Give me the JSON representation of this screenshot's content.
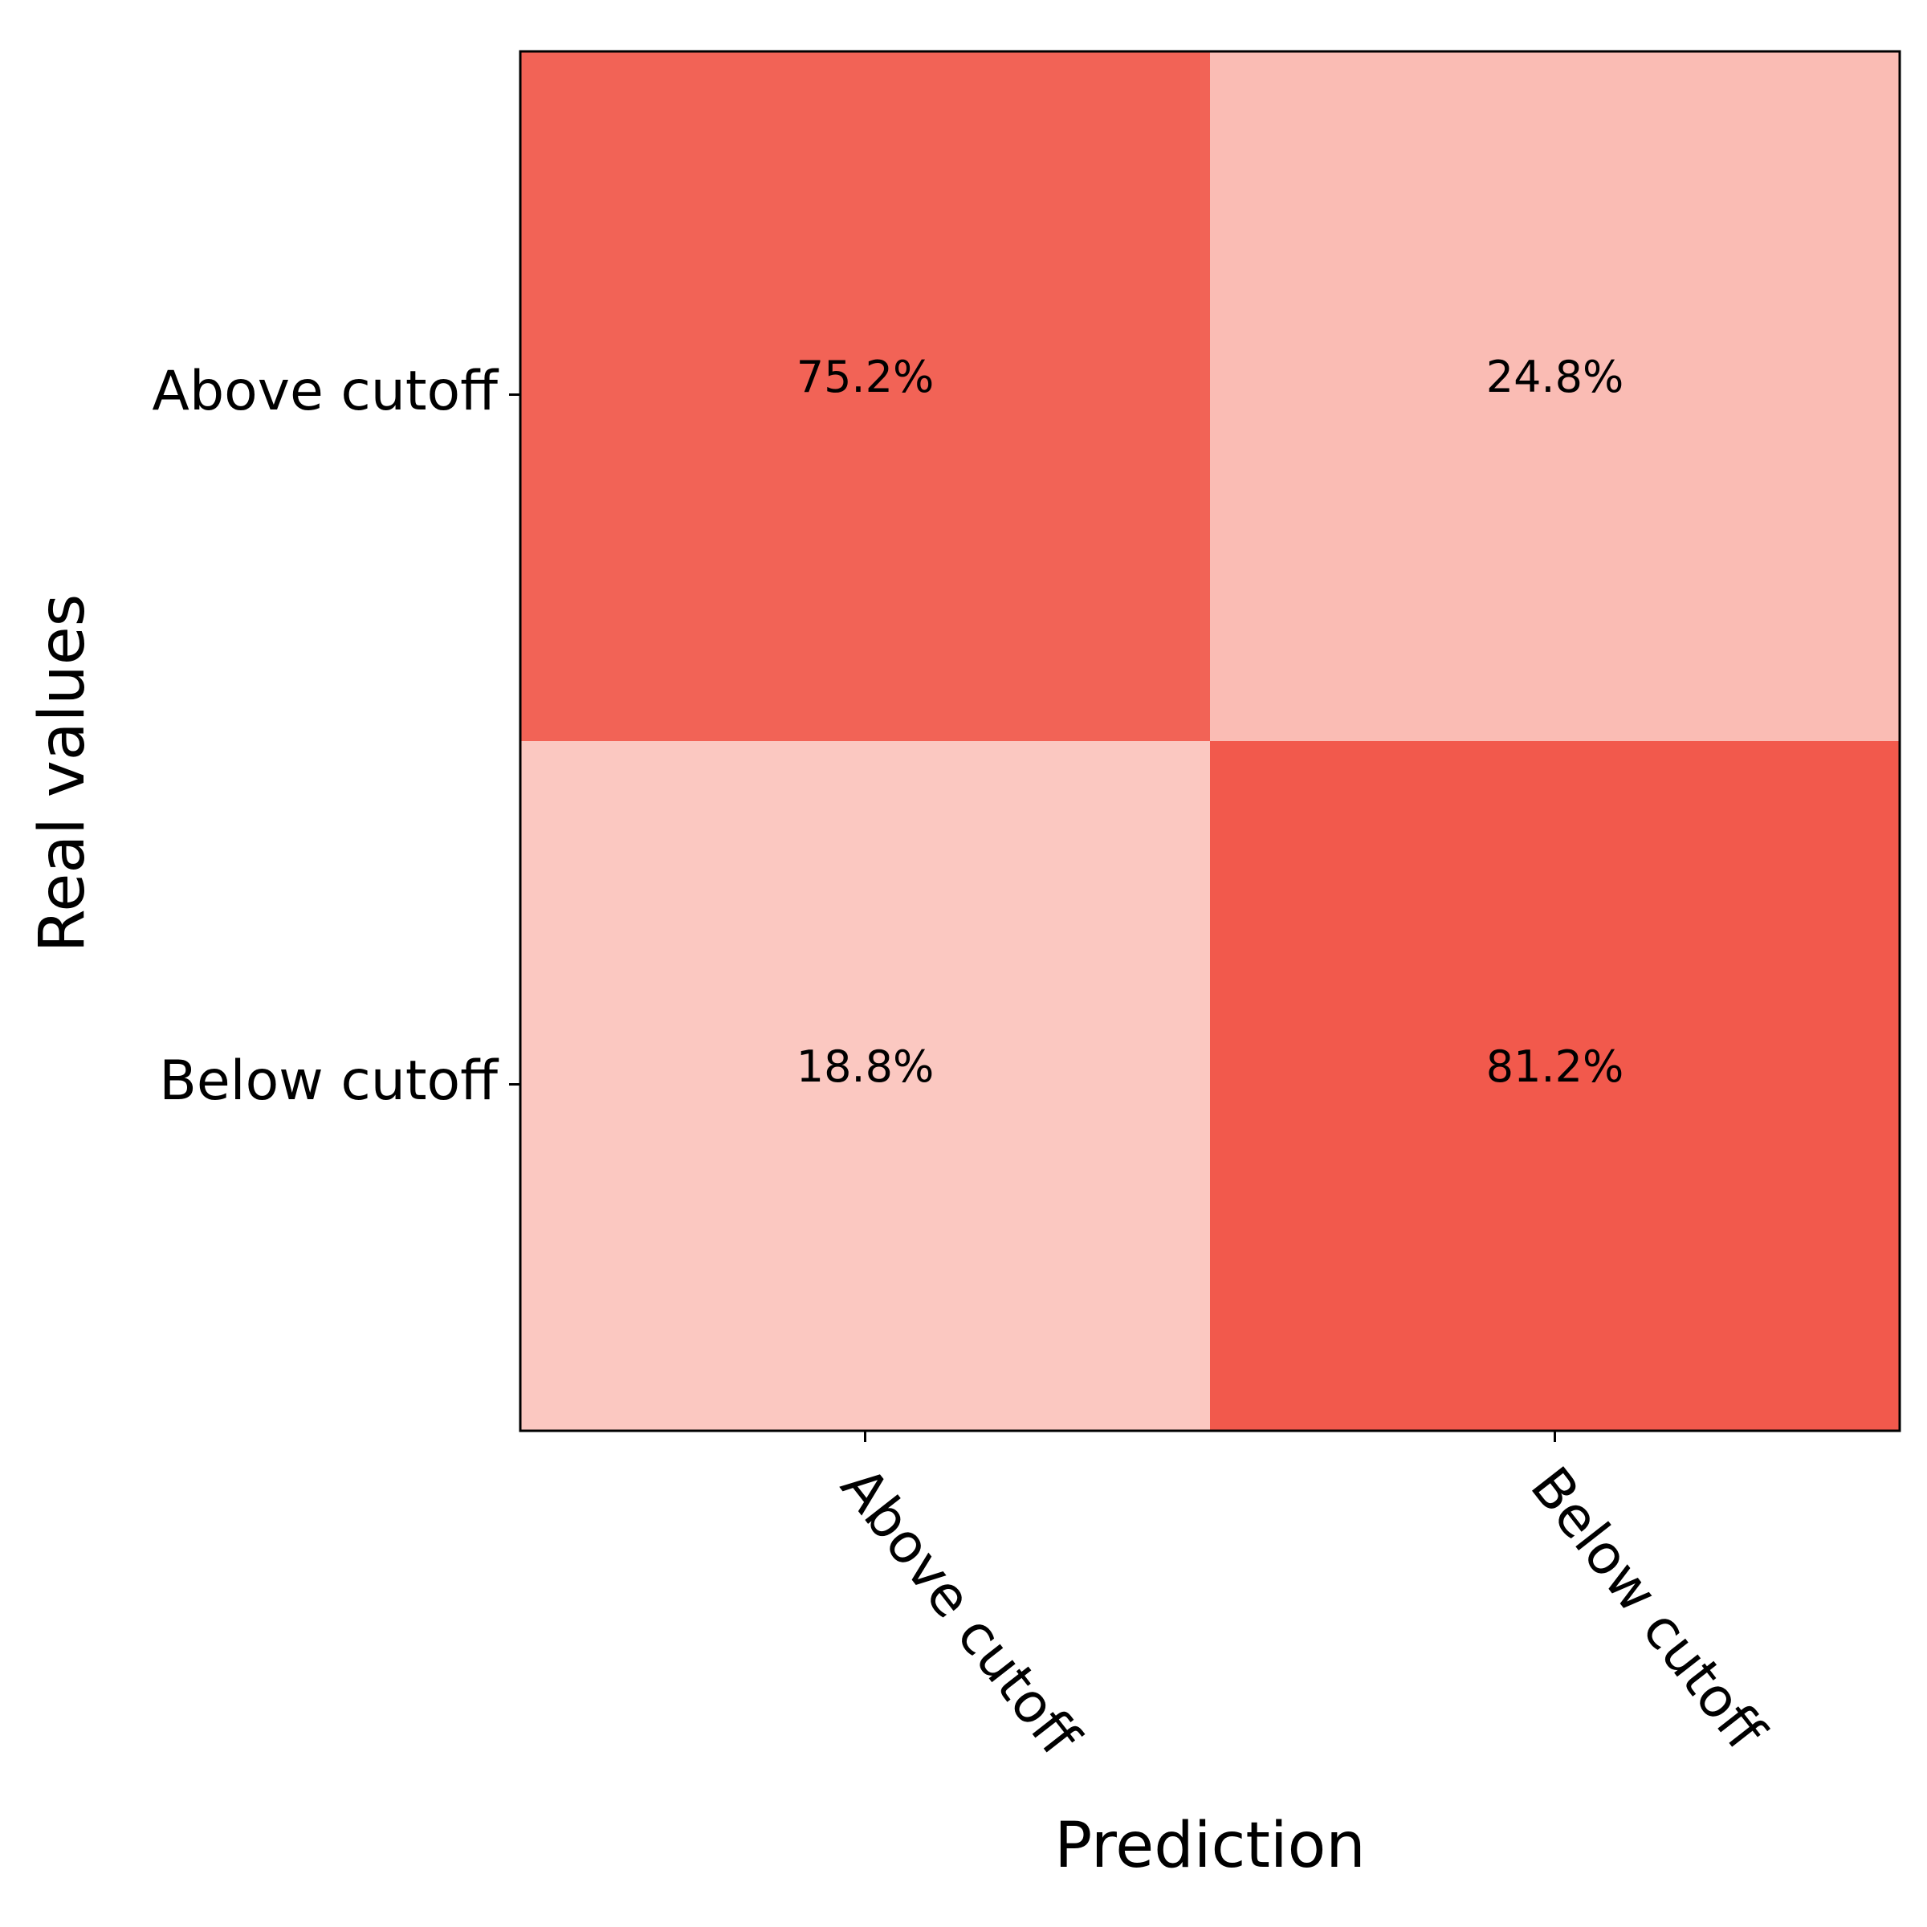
{
  "chart_data": {
    "type": "heatmap",
    "title": "",
    "xlabel": "Prediction",
    "ylabel": "Real values",
    "x_categories": [
      "Above cutoff",
      "Below cutoff"
    ],
    "y_categories": [
      "Above cutoff",
      "Below cutoff"
    ],
    "values": [
      [
        75.2,
        24.8
      ],
      [
        18.8,
        81.2
      ]
    ],
    "cell_labels": [
      [
        "75.2%",
        "24.8%"
      ],
      [
        "18.8%",
        "81.2%"
      ]
    ],
    "colormap": "reds",
    "colors": {
      "low": "#fff5f0",
      "high": "#ef3b2c"
    },
    "grid": false,
    "legend": "none"
  }
}
